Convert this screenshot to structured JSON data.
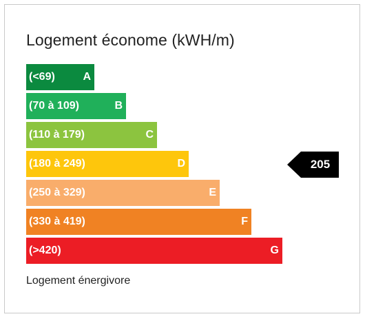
{
  "title": "Logement économe (kWH/m)",
  "footer": "Logement énergivore",
  "classes": [
    {
      "range": "(<69)",
      "letter": "A",
      "color": "#0b8a3f"
    },
    {
      "range": "(70 à  109)",
      "letter": "B",
      "color": "#20b05a"
    },
    {
      "range": "(110 à  179)",
      "letter": "C",
      "color": "#8cc43f"
    },
    {
      "range": "(180 à  249)",
      "letter": "D",
      "color": "#fec60c"
    },
    {
      "range": "(250 à  329)",
      "letter": "E",
      "color": "#f9ad6b"
    },
    {
      "range": "(330 à  419)",
      "letter": "F",
      "color": "#f08223"
    },
    {
      "range": "(>420)",
      "letter": "G",
      "color": "#ec1d25"
    }
  ],
  "indicator": {
    "value": "205",
    "class": "D",
    "color": "#000000"
  }
}
